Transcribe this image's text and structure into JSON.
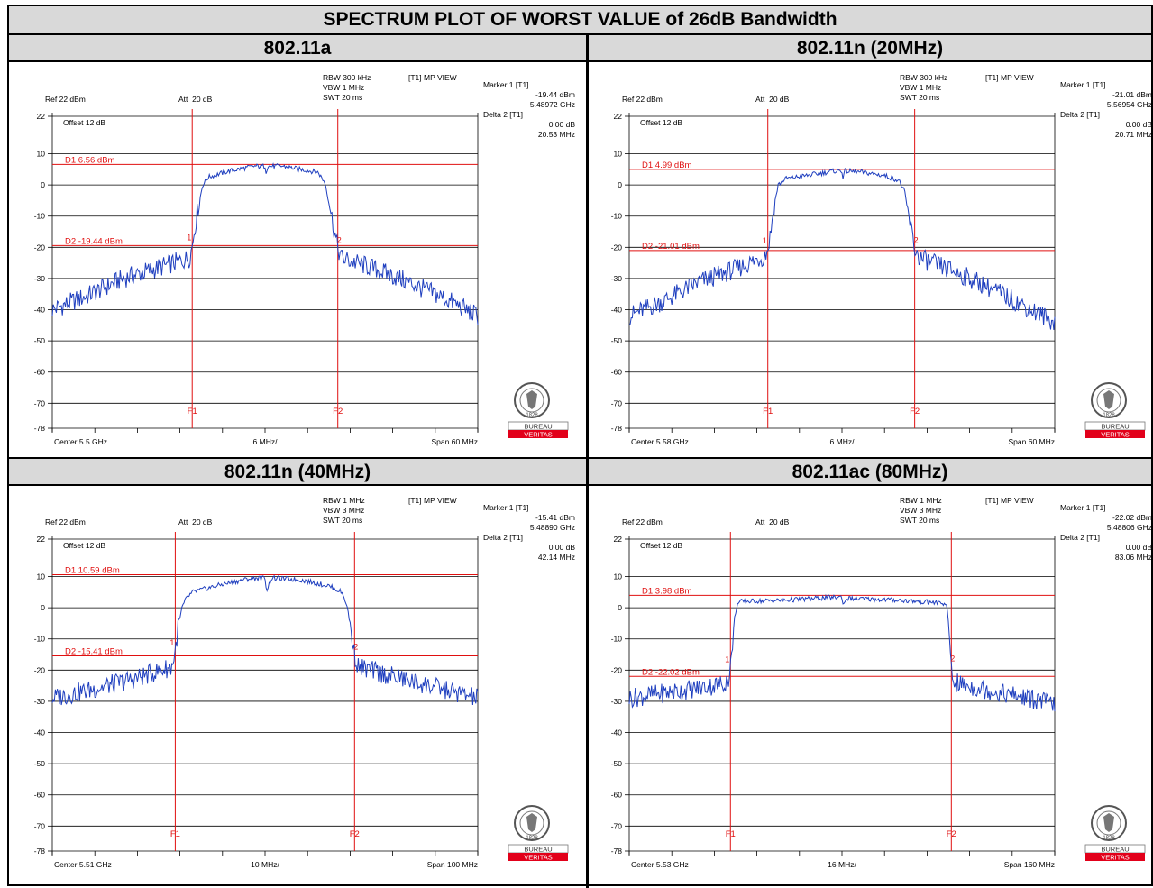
{
  "title": "SPECTRUM PLOT OF WORST VALUE of 26dB Bandwidth",
  "bv_logo": {
    "top": "BUREAU",
    "bottom": "VERITAS",
    "year": "1828"
  },
  "panels": [
    {
      "heading": "802.11a",
      "rbw": "RBW 300 kHz",
      "vbw": "VBW 1 MHz",
      "swt": "SWT 20 ms",
      "view": "[T1] MP VIEW",
      "ref": "Ref 22 dBm",
      "att": "Att  20 dB",
      "offset": "Offset 12 dB",
      "marker1_label": "Marker 1 [T1]",
      "marker1_level": "-19.44 dBm",
      "marker1_freq": "5.48972 GHz",
      "delta2_label": "Delta 2 [T1]",
      "delta2_level": "0.00 dB",
      "delta2_freq": "20.53 MHz",
      "center": "Center 5.5 GHz",
      "per_div": "6 MHz/",
      "span": "Span 60 MHz",
      "chart_data": {
        "type": "line",
        "xlabel": "",
        "ylabel": "",
        "xlim": [
          -30,
          30
        ],
        "ylim": [
          -78,
          22
        ],
        "x_unit": "MHz offset from center",
        "y_ticks": [
          22,
          10,
          0,
          -10,
          -20,
          -30,
          -40,
          -50,
          -60,
          -70,
          -78
        ],
        "d1": {
          "label": "D1 6.56 dBm",
          "value": 6.56
        },
        "d2": {
          "label": "D2 -19.44 dBm",
          "value": -19.44
        },
        "f1": {
          "label": "F1",
          "x": -10.27
        },
        "f2": {
          "label": "F2",
          "x": 10.26
        },
        "marker_labels": [
          "1",
          "2"
        ],
        "series": [
          {
            "color": "#1f3fbf",
            "points": [
              [
                -30,
                -40
              ],
              [
                -25,
                -35.5
              ],
              [
                -20,
                -30
              ],
              [
                -15,
                -26.5
              ],
              [
                -10.7,
                -23.5
              ],
              [
                -10.3,
                -20
              ],
              [
                -10,
                -15
              ],
              [
                -9.5,
                -8
              ],
              [
                -8.8,
                0
              ],
              [
                -8,
                2.5
              ],
              [
                -5,
                4.5
              ],
              [
                -1.5,
                6
              ],
              [
                0,
                6
              ],
              [
                0.1,
                4
              ],
              [
                0.4,
                6
              ],
              [
                2.5,
                6
              ],
              [
                5,
                5
              ],
              [
                7.5,
                4
              ],
              [
                8.5,
                0.5
              ],
              [
                9.2,
                -8
              ],
              [
                9.8,
                -15
              ],
              [
                10.2,
                -20
              ],
              [
                10.8,
                -23.5
              ],
              [
                15,
                -26.5
              ],
              [
                20,
                -31
              ],
              [
                25,
                -36
              ],
              [
                30,
                -42
              ]
            ]
          }
        ]
      }
    },
    {
      "heading": "802.11n (20MHz)",
      "rbw": "RBW 300 kHz",
      "vbw": "VBW 1 MHz",
      "swt": "SWT 20 ms",
      "view": "[T1] MP VIEW",
      "ref": "Ref 22 dBm",
      "att": "Att  20 dB",
      "offset": "Offset 12 dB",
      "marker1_label": "Marker 1 [T1]",
      "marker1_level": "-21.01 dBm",
      "marker1_freq": "5.56954 GHz",
      "delta2_label": "Delta 2 [T1]",
      "delta2_level": "0.00 dB",
      "delta2_freq": "20.71 MHz",
      "center": "Center 5.58 GHz",
      "per_div": "6 MHz/",
      "span": "Span 60 MHz",
      "chart_data": {
        "type": "line",
        "xlabel": "",
        "ylabel": "",
        "xlim": [
          -30,
          30
        ],
        "ylim": [
          -78,
          22
        ],
        "x_unit": "MHz offset from center",
        "y_ticks": [
          22,
          10,
          0,
          -10,
          -20,
          -30,
          -40,
          -50,
          -60,
          -70,
          -78
        ],
        "d1": {
          "label": "D1 4.99 dBm",
          "value": 4.99
        },
        "d2": {
          "label": "D2 -21.01 dBm",
          "value": -21.01
        },
        "f1": {
          "label": "F1",
          "x": -10.46
        },
        "f2": {
          "label": "F2",
          "x": 10.25
        },
        "marker_labels": [
          "1",
          "2"
        ],
        "series": [
          {
            "color": "#1f3fbf",
            "points": [
              [
                -30,
                -42
              ],
              [
                -25,
                -37
              ],
              [
                -20,
                -31
              ],
              [
                -15,
                -27
              ],
              [
                -11,
                -23
              ],
              [
                -10.5,
                -21
              ],
              [
                -10.1,
                -16
              ],
              [
                -9.6,
                -7
              ],
              [
                -9,
                0
              ],
              [
                -8,
                2
              ],
              [
                -5,
                3
              ],
              [
                -1,
                4.5
              ],
              [
                0,
                4.5
              ],
              [
                0.1,
                2
              ],
              [
                0.4,
                4.5
              ],
              [
                3,
                4
              ],
              [
                6,
                3
              ],
              [
                8,
                1.5
              ],
              [
                8.8,
                -2
              ],
              [
                9.4,
                -10
              ],
              [
                9.9,
                -16
              ],
              [
                10.3,
                -21
              ],
              [
                11,
                -23.5
              ],
              [
                15,
                -27
              ],
              [
                20,
                -32
              ],
              [
                25,
                -38
              ],
              [
                30,
                -44
              ]
            ]
          }
        ]
      }
    },
    {
      "heading": "802.11n (40MHz)",
      "rbw": "RBW 1 MHz",
      "vbw": "VBW 3 MHz",
      "swt": "SWT 20 ms",
      "view": "[T1] MP VIEW",
      "ref": "Ref 22 dBm",
      "att": "Att  20 dB",
      "offset": "Offset 12 dB",
      "marker1_label": "Marker 1 [T1]",
      "marker1_level": "-15.41 dBm",
      "marker1_freq": "5.48890 GHz",
      "delta2_label": "Delta 2 [T1]",
      "delta2_level": "0.00 dB",
      "delta2_freq": "42.14 MHz",
      "center": "Center 5.51 GHz",
      "per_div": "10 MHz/",
      "span": "Span 100 MHz",
      "chart_data": {
        "type": "line",
        "xlabel": "",
        "ylabel": "",
        "xlim": [
          -50,
          50
        ],
        "ylim": [
          -78,
          22
        ],
        "x_unit": "MHz offset from center",
        "y_ticks": [
          22,
          10,
          0,
          -10,
          -20,
          -30,
          -40,
          -50,
          -60,
          -70,
          -78
        ],
        "d1": {
          "label": "D1 10.59 dBm",
          "value": 10.59
        },
        "d2": {
          "label": "D2 -15.41 dBm",
          "value": -15.41
        },
        "f1": {
          "label": "F1",
          "x": -21.1
        },
        "f2": {
          "label": "F2",
          "x": 21.04
        },
        "marker_labels": [
          "1",
          "2"
        ],
        "series": [
          {
            "color": "#1f3fbf",
            "points": [
              [
                -50,
                -29
              ],
              [
                -40,
                -26
              ],
              [
                -30,
                -22.5
              ],
              [
                -22,
                -19
              ],
              [
                -21.2,
                -15
              ],
              [
                -20.5,
                -7
              ],
              [
                -19.5,
                0
              ],
              [
                -18.5,
                3
              ],
              [
                -17,
                5
              ],
              [
                -10,
                7.5
              ],
              [
                -3,
                9.5
              ],
              [
                0,
                9.5
              ],
              [
                0.4,
                5.5
              ],
              [
                1.5,
                9.5
              ],
              [
                8,
                9
              ],
              [
                15,
                7
              ],
              [
                18,
                5
              ],
              [
                19,
                2
              ],
              [
                20,
                -5
              ],
              [
                21,
                -15
              ],
              [
                22,
                -19
              ],
              [
                30,
                -22
              ],
              [
                40,
                -25.5
              ],
              [
                50,
                -29
              ]
            ]
          }
        ]
      }
    },
    {
      "heading": "802.11ac (80MHz)",
      "rbw": "RBW 1 MHz",
      "vbw": "VBW 3 MHz",
      "swt": "SWT 20 ms",
      "view": "[T1] MP VIEW",
      "ref": "Ref 22 dBm",
      "att": "Att  20 dB",
      "offset": "Offset 12 dB",
      "marker1_label": "Marker 1 [T1]",
      "marker1_level": "-22.02 dBm",
      "marker1_freq": "5.48806 GHz",
      "delta2_label": "Delta 2 [T1]",
      "delta2_level": "0.00 dB",
      "delta2_freq": "83.06 MHz",
      "center": "Center 5.53 GHz",
      "per_div": "16 MHz/",
      "span": "Span 160 MHz",
      "chart_data": {
        "type": "line",
        "xlabel": "",
        "ylabel": "",
        "xlim": [
          -80,
          80
        ],
        "ylim": [
          -78,
          22
        ],
        "x_unit": "MHz offset from center",
        "y_ticks": [
          22,
          10,
          0,
          -10,
          -20,
          -30,
          -40,
          -50,
          -60,
          -70,
          -78
        ],
        "d1": {
          "label": "D1 3.98 dBm",
          "value": 3.98
        },
        "d2": {
          "label": "D2 -22.02 dBm",
          "value": -22.02
        },
        "f1": {
          "label": "F1",
          "x": -41.94
        },
        "f2": {
          "label": "F2",
          "x": 41.12
        },
        "marker_labels": [
          "1",
          "2"
        ],
        "series": [
          {
            "color": "#1f3fbf",
            "points": [
              [
                -80,
                -29
              ],
              [
                -60,
                -26.5
              ],
              [
                -45,
                -24.5
              ],
              [
                -42.3,
                -22.5
              ],
              [
                -41.5,
                -15
              ],
              [
                -40.5,
                -4
              ],
              [
                -39.5,
                1
              ],
              [
                -38,
                2
              ],
              [
                -20,
                2.5
              ],
              [
                0,
                3.5
              ],
              [
                0.5,
                0.5
              ],
              [
                1.5,
                3
              ],
              [
                20,
                2.5
              ],
              [
                38,
                1.5
              ],
              [
                39.5,
                0
              ],
              [
                40.5,
                -10
              ],
              [
                41.2,
                -20
              ],
              [
                42,
                -24
              ],
              [
                55,
                -26.5
              ],
              [
                70,
                -29
              ],
              [
                80,
                -31
              ]
            ]
          }
        ]
      }
    }
  ]
}
